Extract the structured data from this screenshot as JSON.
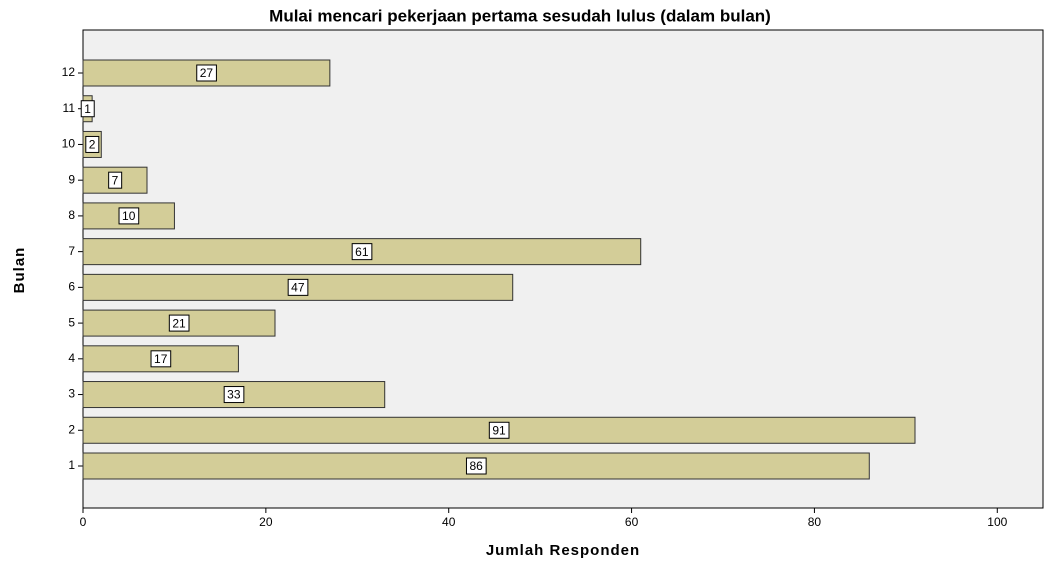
{
  "chart_data": {
    "type": "barh",
    "title": "Mulai mencari pekerjaan pertama sesudah lulus (dalam bulan)",
    "x_label": "Jumlah Responden",
    "y_label": "Bulan",
    "categories": [
      "1",
      "2",
      "3",
      "4",
      "5",
      "6",
      "7",
      "8",
      "9",
      "10",
      "11",
      "12"
    ],
    "values": [
      86,
      91,
      33,
      17,
      21,
      47,
      61,
      10,
      7,
      2,
      1,
      27
    ],
    "color": "#d3cd98",
    "xlim": [
      0,
      105
    ],
    "xticks": [
      0,
      20,
      40,
      60,
      80,
      100
    ]
  }
}
